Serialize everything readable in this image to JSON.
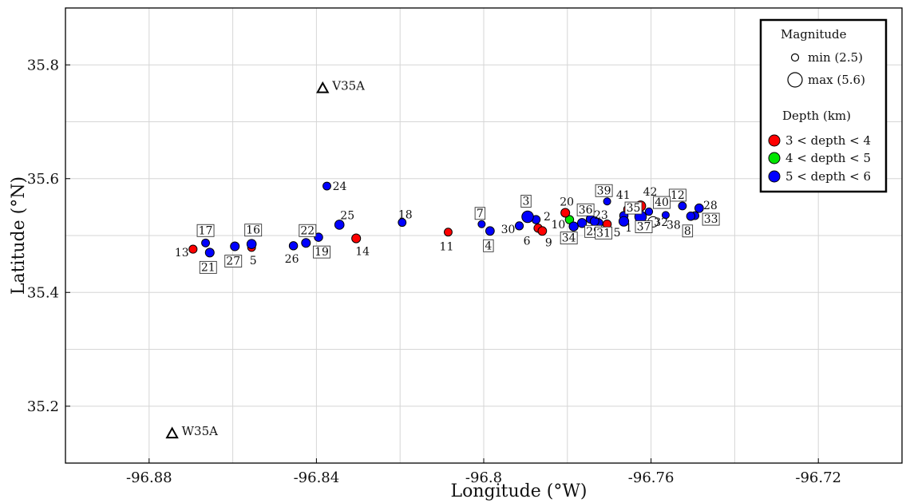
{
  "chart_data": {
    "type": "scatter",
    "title": "",
    "xlabel": "Longitude (°W)",
    "ylabel": "Latitude (°N)",
    "xlim": [
      -96.9,
      -96.7
    ],
    "ylim": [
      35.1,
      35.9
    ],
    "x_ticks": [
      -96.88,
      -96.84,
      -96.8,
      -96.76,
      -96.72
    ],
    "y_ticks": [
      35.2,
      35.4,
      35.6,
      35.8
    ],
    "x_tick_labels": [
      "-96.88",
      "-96.84",
      "-96.8",
      "-96.76",
      "-96.72"
    ],
    "y_tick_labels": [
      "35.2",
      "35.4",
      "35.6",
      "35.8"
    ],
    "grid": true,
    "legend_position": "top-right",
    "legend": {
      "magnitude_title": "Magnitude",
      "min_label": "min (2.5)",
      "max_label": "max (5.6)",
      "min_mag": 2.5,
      "max_mag": 5.6,
      "depth_title": "Depth (km)",
      "depth_classes": [
        {
          "label": "3 < depth < 4",
          "color": "#ff0000"
        },
        {
          "label": "4 < depth  < 5",
          "color": "#00e600"
        },
        {
          "label": "5 < depth  < 6",
          "color": "#0000ff"
        }
      ]
    },
    "stations": [
      {
        "name": "V35A",
        "lon": -96.8385,
        "lat": 35.759
      },
      {
        "name": "W35A",
        "lon": -96.8745,
        "lat": 35.152
      }
    ],
    "events": [
      {
        "id": "1",
        "lon": -96.7665,
        "lat": 35.525,
        "mag": 3.6,
        "depth_class": 2,
        "boxed": false
      },
      {
        "id": "2",
        "lon": -96.7875,
        "lat": 35.528,
        "mag": 3.0,
        "depth_class": 2,
        "boxed": false
      },
      {
        "id": "3",
        "lon": -96.7895,
        "lat": 35.533,
        "mag": 4.4,
        "depth_class": 2,
        "boxed": true
      },
      {
        "id": "4",
        "lon": -96.7985,
        "lat": 35.508,
        "mag": 3.1,
        "depth_class": 2,
        "boxed": true
      },
      {
        "id": "5",
        "lon": -96.8555,
        "lat": 35.479,
        "mag": 2.8,
        "depth_class": 0,
        "boxed": false
      },
      {
        "id": "6",
        "lon": -96.787,
        "lat": 35.513,
        "mag": 3.0,
        "depth_class": 0,
        "boxed": false
      },
      {
        "id": "7",
        "lon": -96.8005,
        "lat": 35.52,
        "mag": 2.5,
        "depth_class": 2,
        "boxed": true
      },
      {
        "id": "8",
        "lon": -96.7505,
        "lat": 35.534,
        "mag": 3.0,
        "depth_class": 2,
        "boxed": true
      },
      {
        "id": "9",
        "lon": -96.786,
        "lat": 35.508,
        "mag": 3.1,
        "depth_class": 0,
        "boxed": false
      },
      {
        "id": "10",
        "lon": -96.7795,
        "lat": 35.528,
        "mag": 3.0,
        "depth_class": 1,
        "boxed": false
      },
      {
        "id": "11",
        "lon": -96.8085,
        "lat": 35.506,
        "mag": 2.8,
        "depth_class": 0,
        "boxed": false
      },
      {
        "id": "12",
        "lon": -96.7525,
        "lat": 35.552,
        "mag": 2.8,
        "depth_class": 2,
        "boxed": true
      },
      {
        "id": "13",
        "lon": -96.8695,
        "lat": 35.476,
        "mag": 2.9,
        "depth_class": 0,
        "boxed": false
      },
      {
        "id": "14",
        "lon": -96.8305,
        "lat": 35.495,
        "mag": 3.2,
        "depth_class": 0,
        "boxed": false
      },
      {
        "id": "15",
        "lon": -96.7705,
        "lat": 35.52,
        "mag": 3.0,
        "depth_class": 0,
        "boxed": false
      },
      {
        "id": "16",
        "lon": -96.8555,
        "lat": 35.485,
        "mag": 3.4,
        "depth_class": 2,
        "boxed": true
      },
      {
        "id": "17",
        "lon": -96.8665,
        "lat": 35.487,
        "mag": 2.8,
        "depth_class": 2,
        "boxed": true
      },
      {
        "id": "18",
        "lon": -96.8195,
        "lat": 35.523,
        "mag": 2.8,
        "depth_class": 2,
        "boxed": false
      },
      {
        "id": "19",
        "lon": -96.8395,
        "lat": 35.497,
        "mag": 3.0,
        "depth_class": 2,
        "boxed": true
      },
      {
        "id": "20",
        "lon": -96.7805,
        "lat": 35.54,
        "mag": 3.2,
        "depth_class": 0,
        "boxed": false
      },
      {
        "id": "21",
        "lon": -96.8655,
        "lat": 35.47,
        "mag": 3.2,
        "depth_class": 2,
        "boxed": true
      },
      {
        "id": "22",
        "lon": -96.8425,
        "lat": 35.487,
        "mag": 3.2,
        "depth_class": 2,
        "boxed": true
      },
      {
        "id": "23",
        "lon": -96.7735,
        "lat": 35.525,
        "mag": 3.2,
        "depth_class": 2,
        "boxed": false
      },
      {
        "id": "24",
        "lon": -96.8375,
        "lat": 35.587,
        "mag": 2.8,
        "depth_class": 2,
        "boxed": false
      },
      {
        "id": "25",
        "lon": -96.8345,
        "lat": 35.519,
        "mag": 3.4,
        "depth_class": 2,
        "boxed": false
      },
      {
        "id": "26",
        "lon": -96.8455,
        "lat": 35.482,
        "mag": 3.0,
        "depth_class": 2,
        "boxed": false
      },
      {
        "id": "27",
        "lon": -96.8595,
        "lat": 35.481,
        "mag": 3.2,
        "depth_class": 2,
        "boxed": true
      },
      {
        "id": "28",
        "lon": -96.7485,
        "lat": 35.548,
        "mag": 3.1,
        "depth_class": 2,
        "boxed": false
      },
      {
        "id": "29",
        "lon": -96.7765,
        "lat": 35.522,
        "mag": 3.3,
        "depth_class": 2,
        "boxed": true
      },
      {
        "id": "30",
        "lon": -96.7915,
        "lat": 35.517,
        "mag": 2.9,
        "depth_class": 2,
        "boxed": false
      },
      {
        "id": "31",
        "lon": -96.7725,
        "lat": 35.522,
        "mag": 3.0,
        "depth_class": 2,
        "boxed": true
      },
      {
        "id": "32",
        "lon": -96.7595,
        "lat": 35.524,
        "mag": 3.9,
        "depth_class": 2,
        "boxed": false,
        "hollow": true
      },
      {
        "id": "33",
        "lon": -96.7495,
        "lat": 35.535,
        "mag": 2.8,
        "depth_class": 2,
        "boxed": true
      },
      {
        "id": "34",
        "lon": -96.7785,
        "lat": 35.516,
        "mag": 3.3,
        "depth_class": 2,
        "boxed": true
      },
      {
        "id": "35",
        "lon": -96.7665,
        "lat": 35.535,
        "mag": 3.0,
        "depth_class": 2,
        "boxed": true
      },
      {
        "id": "36",
        "lon": -96.7745,
        "lat": 35.529,
        "mag": 3.0,
        "depth_class": 2,
        "boxed": true
      },
      {
        "id": "37",
        "lon": -96.7625,
        "lat": 35.533,
        "mag": 4.4,
        "depth_class": 2,
        "boxed": true
      },
      {
        "id": "38",
        "lon": -96.7565,
        "lat": 35.536,
        "mag": 2.5,
        "depth_class": 2,
        "boxed": false
      },
      {
        "id": "39",
        "lon": -96.7705,
        "lat": 35.56,
        "mag": 2.5,
        "depth_class": 2,
        "boxed": true
      },
      {
        "id": "40",
        "lon": -96.7605,
        "lat": 35.542,
        "mag": 2.6,
        "depth_class": 2,
        "boxed": true
      },
      {
        "id": "41",
        "lon": -96.7655,
        "lat": 35.546,
        "mag": 3.2,
        "depth_class": 0,
        "boxed": false
      },
      {
        "id": "42",
        "lon": -96.7625,
        "lat": 35.552,
        "mag": 3.8,
        "depth_class": 0,
        "boxed": false
      }
    ]
  }
}
